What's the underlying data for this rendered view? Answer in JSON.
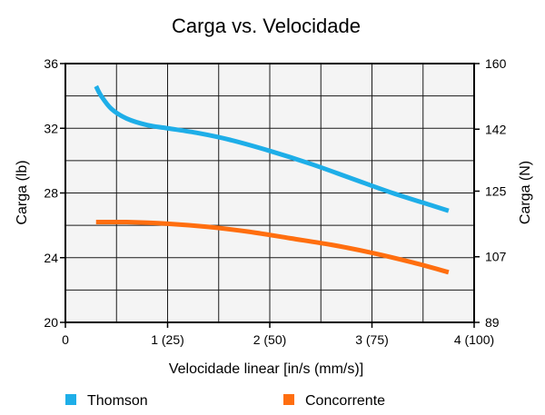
{
  "chart_data": {
    "type": "line",
    "title": "Carga vs. Velocidade",
    "xlabel": "Velocidade linear [in/s (mm/s)]",
    "ylabel": "Carga (lb)",
    "y2label": "Carga (N)",
    "xlim": [
      0,
      4
    ],
    "ylim": [
      20,
      36
    ],
    "y2lim": [
      89,
      160
    ],
    "x_ticks": [
      {
        "value": 0,
        "label": "0"
      },
      {
        "value": 1,
        "label": "1 (25)"
      },
      {
        "value": 2,
        "label": "2 (50)"
      },
      {
        "value": 3,
        "label": "3 (75)"
      },
      {
        "value": 4,
        "label": "4 (100)"
      }
    ],
    "y_ticks": [
      {
        "value": 20,
        "label": "20"
      },
      {
        "value": 24,
        "label": "24"
      },
      {
        "value": 28,
        "label": "28"
      },
      {
        "value": 32,
        "label": "32"
      },
      {
        "value": 36,
        "label": "36"
      }
    ],
    "y2_ticks": [
      {
        "value": 89,
        "label": "89"
      },
      {
        "value": 107,
        "label": "107"
      },
      {
        "value": 125,
        "label": "125"
      },
      {
        "value": 142,
        "label": "142"
      },
      {
        "value": 160,
        "label": "160"
      }
    ],
    "grid": true,
    "legend_position": "bottom",
    "series": [
      {
        "name": "Thomson",
        "color": "#1eaee8",
        "x": [
          0.3,
          0.35,
          0.45,
          0.6,
          0.8,
          1.0,
          1.3,
          1.6,
          2.0,
          2.4,
          2.8,
          3.2,
          3.6,
          3.75
        ],
        "y": [
          34.6,
          34.0,
          33.2,
          32.6,
          32.2,
          32.0,
          31.7,
          31.3,
          30.6,
          29.8,
          28.9,
          28.0,
          27.2,
          26.9
        ]
      },
      {
        "name": "Concorrente",
        "color": "#ff6e0f",
        "x": [
          0.3,
          0.6,
          1.0,
          1.4,
          1.8,
          2.2,
          2.6,
          3.0,
          3.4,
          3.75
        ],
        "y": [
          26.2,
          26.2,
          26.1,
          25.9,
          25.6,
          25.2,
          24.8,
          24.3,
          23.7,
          23.1
        ]
      }
    ]
  }
}
